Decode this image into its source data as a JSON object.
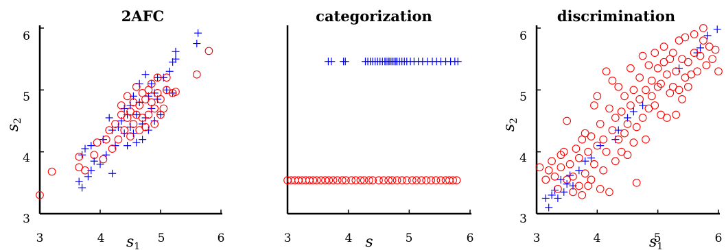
{
  "chart_data": [
    {
      "type": "scatter",
      "title": "2AFC",
      "xlabel": "s",
      "xlabel_sub": "1",
      "ylabel": "s",
      "ylabel_sub": "2",
      "xlim": [
        3,
        6
      ],
      "ylim": [
        3,
        6
      ],
      "xticks": [
        "3",
        "4",
        "5",
        "6"
      ],
      "yticks": [
        "3",
        "4",
        "5",
        "6"
      ],
      "series": [
        {
          "marker": "plus",
          "color": "#0000ff",
          "points": [
            [
              3.65,
              3.52
            ],
            [
              3.7,
              3.42
            ],
            [
              3.7,
              3.95
            ],
            [
              3.75,
              4.05
            ],
            [
              3.8,
              3.6
            ],
            [
              3.85,
              3.7
            ],
            [
              3.85,
              4.1
            ],
            [
              3.9,
              3.85
            ],
            [
              4.0,
              3.8
            ],
            [
              4.05,
              4.2
            ],
            [
              4.1,
              3.95
            ],
            [
              4.15,
              4.55
            ],
            [
              4.2,
              4.35
            ],
            [
              4.2,
              3.65
            ],
            [
              4.25,
              4.1
            ],
            [
              4.3,
              4.4
            ],
            [
              4.35,
              4.5
            ],
            [
              4.4,
              4.3
            ],
            [
              4.4,
              4.7
            ],
            [
              4.45,
              4.1
            ],
            [
              4.45,
              4.6
            ],
            [
              4.5,
              4.75
            ],
            [
              4.5,
              4.4
            ],
            [
              4.55,
              4.9
            ],
            [
              4.55,
              4.3
            ],
            [
              4.6,
              4.6
            ],
            [
              4.6,
              4.15
            ],
            [
              4.65,
              4.8
            ],
            [
              4.65,
              5.1
            ],
            [
              4.7,
              4.45
            ],
            [
              4.7,
              4.2
            ],
            [
              4.75,
              5.25
            ],
            [
              4.75,
              4.55
            ],
            [
              4.8,
              4.9
            ],
            [
              4.8,
              4.35
            ],
            [
              4.85,
              5.1
            ],
            [
              4.85,
              4.7
            ],
            [
              4.9,
              4.95
            ],
            [
              4.9,
              4.5
            ],
            [
              4.95,
              5.2
            ],
            [
              4.95,
              4.85
            ],
            [
              5.0,
              4.6
            ],
            [
              5.05,
              5.2
            ],
            [
              5.1,
              5.0
            ],
            [
              5.15,
              5.3
            ],
            [
              5.2,
              5.45
            ],
            [
              5.2,
              4.95
            ],
            [
              5.25,
              5.5
            ],
            [
              5.25,
              5.62
            ],
            [
              5.6,
              5.75
            ],
            [
              5.62,
              5.92
            ]
          ]
        },
        {
          "marker": "circle",
          "color": "#ff0000",
          "points": [
            [
              3.0,
              3.3
            ],
            [
              3.2,
              3.68
            ],
            [
              3.65,
              3.75
            ],
            [
              3.65,
              3.92
            ],
            [
              3.75,
              3.7
            ],
            [
              3.9,
              3.95
            ],
            [
              3.95,
              4.15
            ],
            [
              4.05,
              3.88
            ],
            [
              4.1,
              4.2
            ],
            [
              4.15,
              4.35
            ],
            [
              4.2,
              4.05
            ],
            [
              4.25,
              4.45
            ],
            [
              4.3,
              4.2
            ],
            [
              4.35,
              4.6
            ],
            [
              4.35,
              4.75
            ],
            [
              4.4,
              4.35
            ],
            [
              4.45,
              4.55
            ],
            [
              4.45,
              4.9
            ],
            [
              4.5,
              4.65
            ],
            [
              4.5,
              4.25
            ],
            [
              4.55,
              4.45
            ],
            [
              4.55,
              4.8
            ],
            [
              4.6,
              4.6
            ],
            [
              4.6,
              5.05
            ],
            [
              4.65,
              4.35
            ],
            [
              4.65,
              4.75
            ],
            [
              4.7,
              4.55
            ],
            [
              4.7,
              4.95
            ],
            [
              4.75,
              4.4
            ],
            [
              4.75,
              4.85
            ],
            [
              4.8,
              5.0
            ],
            [
              4.8,
              4.6
            ],
            [
              4.85,
              4.8
            ],
            [
              4.85,
              5.1
            ],
            [
              4.9,
              4.45
            ],
            [
              4.9,
              4.7
            ],
            [
              4.95,
              4.95
            ],
            [
              4.95,
              5.2
            ],
            [
              5.0,
              4.6
            ],
            [
              5.0,
              4.85
            ],
            [
              5.05,
              4.7
            ],
            [
              5.1,
              5.0
            ],
            [
              5.1,
              5.2
            ],
            [
              5.2,
              4.95
            ],
            [
              5.25,
              4.97
            ],
            [
              5.6,
              5.25
            ],
            [
              5.8,
              5.63
            ]
          ]
        }
      ]
    },
    {
      "type": "scatter",
      "title": "categorization",
      "xlabel": "s",
      "xlim": [
        3,
        6
      ],
      "ylim": [
        0,
        1
      ],
      "xticks": [
        "3",
        "4",
        "5",
        "6"
      ],
      "series": [
        {
          "marker": "plus",
          "color": "#0000ff",
          "y": 0.82,
          "x": [
            3.67,
            3.72,
            3.92,
            3.95,
            4.28,
            4.32,
            4.36,
            4.4,
            4.44,
            4.48,
            4.52,
            4.56,
            4.6,
            4.62,
            4.65,
            4.67,
            4.7,
            4.72,
            4.75,
            4.78,
            4.8,
            4.84,
            4.88,
            4.92,
            4.96,
            5.02,
            5.08,
            5.15,
            5.22,
            5.3,
            5.38,
            5.45,
            5.52,
            5.6,
            5.68,
            5.75,
            5.8
          ]
        },
        {
          "marker": "circle",
          "color": "#ff0000",
          "y": 0.18,
          "x": [
            3.0,
            3.06,
            3.12,
            3.18,
            3.24,
            3.3,
            3.36,
            3.42,
            3.48,
            3.55,
            3.62,
            3.68,
            3.75,
            3.82,
            3.9,
            3.96,
            4.05,
            4.12,
            4.2,
            4.26,
            4.34,
            4.4,
            4.5,
            4.58,
            4.66,
            4.72,
            4.8,
            4.88,
            4.96,
            5.05,
            5.12,
            5.2,
            5.28,
            5.36,
            5.44,
            5.52,
            5.6,
            5.66,
            5.72,
            5.78
          ]
        }
      ]
    },
    {
      "type": "scatter",
      "title": "discrimination",
      "xlabel": "s",
      "xlabel_sub": "1",
      "ylabel": "s",
      "ylabel_sub": "2",
      "xlim": [
        3,
        6
      ],
      "ylim": [
        3,
        6
      ],
      "xticks": [
        "3",
        "4",
        "5",
        "6"
      ],
      "yticks": [
        "3",
        "4",
        "5",
        "6"
      ],
      "series": [
        {
          "marker": "plus",
          "color": "#0000ff",
          "points": [
            [
              3.15,
              3.25
            ],
            [
              3.2,
              3.1
            ],
            [
              3.25,
              3.3
            ],
            [
              3.3,
              3.38
            ],
            [
              3.35,
              3.25
            ],
            [
              3.4,
              3.55
            ],
            [
              3.45,
              3.35
            ],
            [
              3.5,
              3.48
            ],
            [
              3.55,
              3.62
            ],
            [
              3.6,
              3.45
            ],
            [
              3.7,
              3.7
            ],
            [
              3.8,
              3.85
            ],
            [
              3.9,
              3.9
            ],
            [
              4.05,
              4.1
            ],
            [
              4.3,
              4.2
            ],
            [
              4.35,
              4.35
            ],
            [
              4.5,
              4.55
            ],
            [
              4.6,
              4.65
            ],
            [
              4.75,
              4.75
            ],
            [
              5.35,
              5.35
            ],
            [
              5.65,
              5.6
            ],
            [
              5.7,
              5.68
            ],
            [
              5.82,
              5.88
            ],
            [
              5.98,
              5.98
            ]
          ]
        },
        {
          "marker": "circle",
          "color": "#ff0000",
          "points": [
            [
              3.05,
              3.75
            ],
            [
              3.15,
              3.55
            ],
            [
              3.2,
              3.7
            ],
            [
              3.25,
              3.85
            ],
            [
              3.3,
              3.6
            ],
            [
              3.35,
              3.4
            ],
            [
              3.4,
              3.95
            ],
            [
              3.4,
              3.75
            ],
            [
              3.45,
              4.0
            ],
            [
              3.5,
              3.55
            ],
            [
              3.5,
              4.5
            ],
            [
              3.55,
              3.8
            ],
            [
              3.6,
              3.35
            ],
            [
              3.6,
              3.6
            ],
            [
              3.65,
              4.05
            ],
            [
              3.7,
              3.45
            ],
            [
              3.7,
              3.9
            ],
            [
              3.75,
              4.2
            ],
            [
              3.75,
              3.3
            ],
            [
              3.8,
              3.65
            ],
            [
              3.8,
              4.3
            ],
            [
              3.85,
              3.45
            ],
            [
              3.85,
              4.0
            ],
            [
              3.9,
              4.25
            ],
            [
              3.9,
              3.55
            ],
            [
              3.95,
              4.75
            ],
            [
              3.95,
              3.8
            ],
            [
              4.0,
              4.1
            ],
            [
              4.0,
              4.9
            ],
            [
              4.05,
              3.4
            ],
            [
              4.05,
              4.45
            ],
            [
              4.1,
              4.2
            ],
            [
              4.1,
              3.7
            ],
            [
              4.15,
              5.3
            ],
            [
              4.15,
              4.0
            ],
            [
              4.2,
              3.35
            ],
            [
              4.2,
              4.7
            ],
            [
              4.25,
              5.15
            ],
            [
              4.25,
              4.35
            ],
            [
              4.3,
              3.85
            ],
            [
              4.3,
              4.55
            ],
            [
              4.35,
              4.2
            ],
            [
              4.35,
              5.05
            ],
            [
              4.4,
              4.0
            ],
            [
              4.4,
              4.65
            ],
            [
              4.45,
              4.3
            ],
            [
              4.45,
              4.9
            ],
            [
              4.5,
              3.95
            ],
            [
              4.5,
              4.45
            ],
            [
              4.55,
              4.75
            ],
            [
              4.55,
              5.35
            ],
            [
              4.6,
              4.15
            ],
            [
              4.6,
              5.0
            ],
            [
              4.65,
              3.5
            ],
            [
              4.65,
              4.4
            ],
            [
              4.7,
              4.85
            ],
            [
              4.7,
              5.2
            ],
            [
              4.75,
              4.55
            ],
            [
              4.75,
              5.55
            ],
            [
              4.8,
              4.2
            ],
            [
              4.8,
              5.0
            ],
            [
              4.85,
              4.7
            ],
            [
              4.85,
              5.4
            ],
            [
              4.9,
              5.15
            ],
            [
              4.9,
              4.9
            ],
            [
              4.95,
              5.6
            ],
            [
              4.95,
              4.75
            ],
            [
              5.0,
              5.05
            ],
            [
              5.0,
              5.35
            ],
            [
              5.05,
              5.1
            ],
            [
              5.05,
              4.6
            ],
            [
              5.1,
              5.45
            ],
            [
              5.1,
              5.7
            ],
            [
              5.15,
              4.55
            ],
            [
              5.15,
              5.25
            ],
            [
              5.2,
              5.5
            ],
            [
              5.2,
              4.95
            ],
            [
              5.25,
              5.05
            ],
            [
              5.25,
              5.6
            ],
            [
              5.3,
              4.6
            ],
            [
              5.3,
              5.3
            ],
            [
              5.35,
              5.8
            ],
            [
              5.35,
              5.0
            ],
            [
              5.4,
              5.5
            ],
            [
              5.4,
              4.85
            ],
            [
              5.45,
              5.2
            ],
            [
              5.45,
              5.85
            ],
            [
              5.5,
              5.05
            ],
            [
              5.5,
              5.45
            ],
            [
              5.55,
              5.25
            ],
            [
              5.6,
              5.9
            ],
            [
              5.6,
              5.6
            ],
            [
              5.65,
              5.3
            ],
            [
              5.7,
              5.55
            ],
            [
              5.75,
              6.0
            ],
            [
              5.75,
              5.8
            ],
            [
              5.8,
              5.4
            ],
            [
              5.85,
              5.7
            ],
            [
              5.9,
              5.5
            ],
            [
              5.95,
              5.65
            ],
            [
              6.0,
              5.3
            ]
          ]
        }
      ]
    }
  ]
}
